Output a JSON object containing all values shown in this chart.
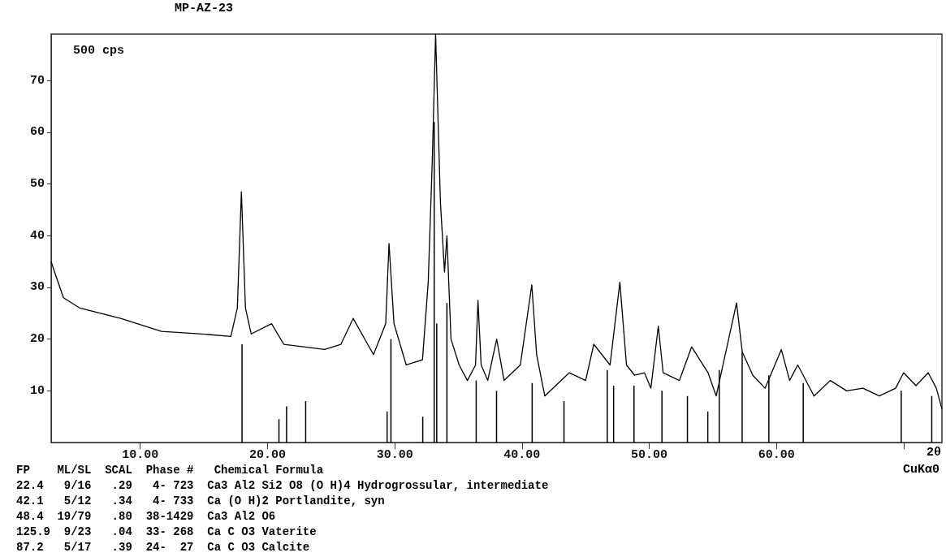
{
  "chart_data": {
    "type": "line",
    "title": "MP-AZ-23",
    "xlim": [
      3,
      73
    ],
    "ylim": [
      0,
      79
    ],
    "xticks": [
      {
        "value": 10,
        "label": "10.00"
      },
      {
        "value": 20,
        "label": "20.00"
      },
      {
        "value": 30,
        "label": "30.00"
      },
      {
        "value": 40,
        "label": "40.00"
      },
      {
        "value": 50,
        "label": "50.00"
      },
      {
        "value": 60,
        "label": "60.00"
      },
      {
        "value": 70,
        "label": null
      }
    ],
    "xlabel": "2θ",
    "yticks": [
      10,
      20,
      30,
      40,
      50,
      60,
      70
    ],
    "grid": false,
    "marker": "none",
    "line_style": "solid",
    "series": [
      {
        "color": "#000000",
        "x": [
          3,
          3.33,
          3.97,
          5.26,
          8.46,
          11.67,
          14.87,
          17.12,
          17.63,
          17.95,
          18.27,
          18.72,
          20.32,
          21.28,
          24.49,
          25.77,
          26.73,
          28.33,
          29.29,
          29.55,
          29.94,
          30.9,
          32.18,
          32.63,
          32.95,
          33.21,
          33.59,
          33.91,
          34.1,
          34.42,
          35.06,
          35.71,
          36.35,
          36.54,
          36.79,
          37.31,
          38.01,
          38.59,
          39.87,
          40.77,
          41.15,
          41.79,
          43.72,
          45,
          45.64,
          46.92,
          47.69,
          48.21,
          48.85,
          49.62,
          50.13,
          50.71,
          51.09,
          52.37,
          53.33,
          54.62,
          55.26,
          56.86,
          57.31,
          58.14,
          59.1,
          60.38,
          61.03,
          61.67,
          62.95,
          64.23,
          65.51,
          66.79,
          68.08,
          69.36,
          69.99,
          70.96,
          71.92,
          72.56,
          73
        ],
        "values": [
          35,
          32.5,
          28,
          26,
          24,
          21.5,
          21,
          20.5,
          26,
          48.5,
          26,
          21,
          23,
          19,
          18,
          19,
          24,
          17,
          23,
          38.5,
          23,
          15,
          16,
          31,
          54.5,
          79,
          46.5,
          33,
          40,
          20,
          15,
          12,
          15,
          27.5,
          15,
          12,
          20,
          12,
          15,
          30.5,
          17,
          9,
          13.5,
          12,
          19,
          15,
          31,
          15,
          13,
          13.5,
          10.5,
          22.5,
          13.5,
          12,
          18.5,
          13.5,
          9,
          27,
          17.5,
          13,
          10.5,
          18,
          12,
          15,
          9,
          12,
          10,
          10.5,
          9,
          10.5,
          13.5,
          11,
          13.5,
          10.5,
          6.5
        ]
      },
      {
        "type": "bar",
        "color": "#000000",
        "x": [
          18,
          20.9,
          21.5,
          23,
          29.4,
          29.7,
          32.2,
          33.1,
          33.3,
          34.1,
          36.4,
          38,
          40.8,
          43.3,
          46.7,
          47.2,
          48.8,
          51,
          53,
          54.6,
          55.5,
          57.3,
          59.4,
          62.1,
          69.8,
          72.2
        ],
        "values": [
          19,
          4.5,
          7,
          8,
          6,
          20,
          5,
          62,
          23,
          27,
          12,
          10,
          11.5,
          8,
          14,
          11,
          11,
          10,
          9,
          6,
          14,
          17.5,
          13,
          11.5,
          10,
          9
        ]
      }
    ],
    "annotations": [
      "500 cps",
      "CuKα0",
      "FP    ML/SL  SCAL  Phase #   Chemical Formula",
      "22.4   9/16   .29   4- 723  Ca3 Al2 Si2 O8 (O H)4 Hydrogrossular, intermediate",
      "42.1   5/12   .34   4- 733  Ca (O H)2 Portlandite, syn",
      "48.4  19/79   .80  38-1429  Ca3 Al2 O6",
      "125.9  9/23   .04  33- 268  Ca C O3 Vaterite",
      "87.2   5/17   .39  24-  27  Ca C O3 Calcite"
    ]
  }
}
